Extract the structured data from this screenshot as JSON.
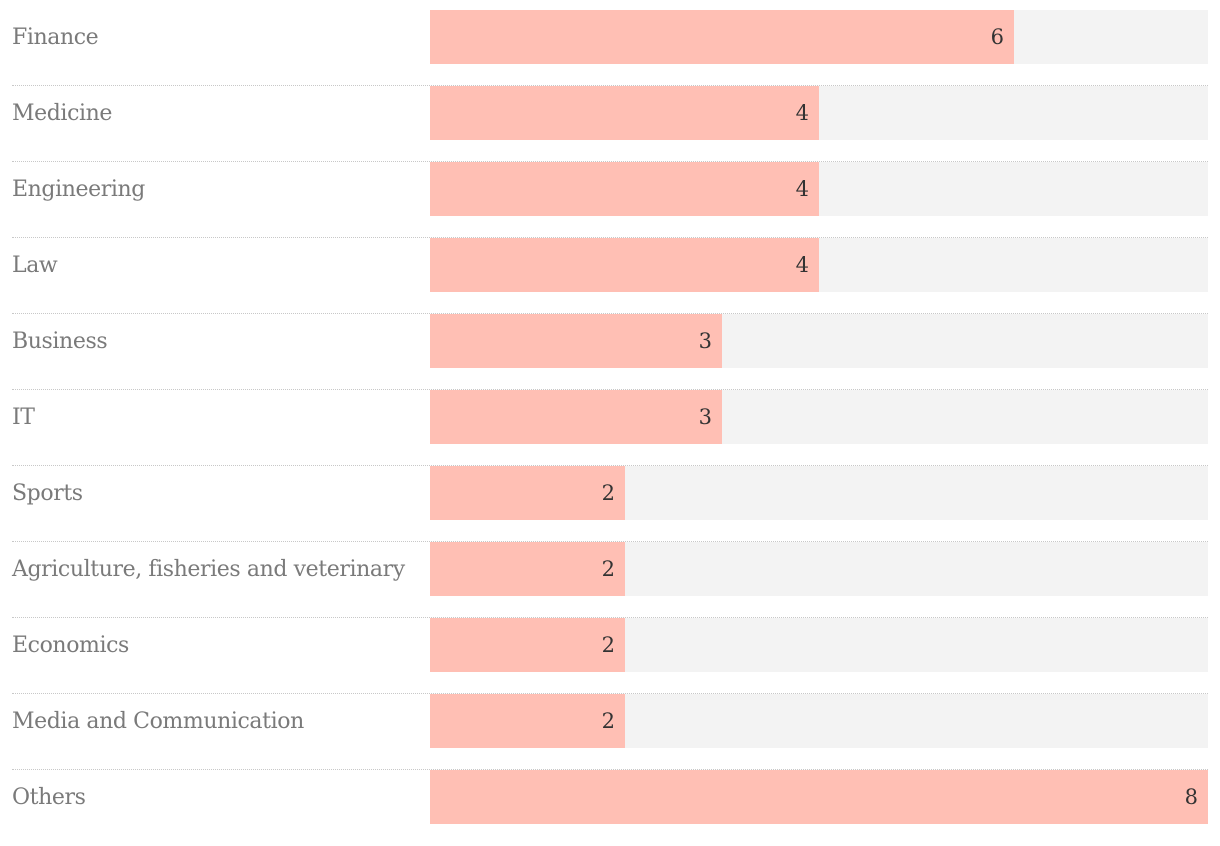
{
  "chart_data": {
    "type": "bar",
    "orientation": "horizontal",
    "title": "",
    "xlabel": "",
    "ylabel": "",
    "xlim": [
      0,
      8
    ],
    "grid": false,
    "categories": [
      "Finance",
      "Medicine",
      "Engineering",
      "Law",
      "Business",
      "IT",
      "Sports",
      "Agriculture, fisheries and veterinary",
      "Economics",
      "Media and Communication",
      "Others"
    ],
    "values": [
      6,
      4,
      4,
      4,
      3,
      3,
      2,
      2,
      2,
      2,
      8
    ],
    "colors": {
      "bar": "#ffbfb4",
      "track": "#f3f3f3",
      "category_text": "#7a7a7a",
      "value_text": "#333333"
    }
  }
}
